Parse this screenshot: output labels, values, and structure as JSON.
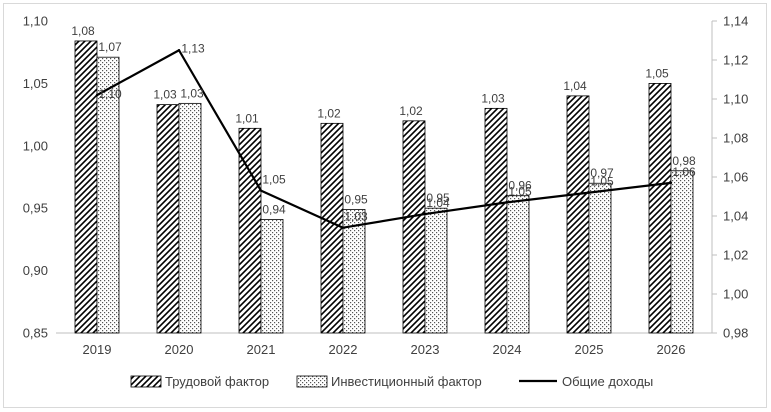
{
  "chart_data": {
    "type": "bar",
    "categories": [
      "2019",
      "2020",
      "2021",
      "2022",
      "2023",
      "2024",
      "2025",
      "2026"
    ],
    "series": [
      {
        "name": "Трудовой фактор",
        "type": "bar",
        "axis": "left",
        "pattern": "diagonal-hatch",
        "values": [
          1.084,
          1.033,
          1.014,
          1.018,
          1.02,
          1.03,
          1.04,
          1.05
        ],
        "labels": [
          "1,08",
          "1,03",
          "1,01",
          "1,02",
          "1,02",
          "1,03",
          "1,04",
          "1,05"
        ]
      },
      {
        "name": "Инвестиционный фактор",
        "type": "bar",
        "axis": "left",
        "pattern": "dotted",
        "values": [
          1.071,
          1.034,
          0.941,
          0.949,
          0.95,
          0.96,
          0.97,
          0.98
        ],
        "labels": [
          "1,07",
          "1,03",
          "0,94",
          "0,95",
          "0,95",
          "0,96",
          "0,97",
          "0,98"
        ]
      },
      {
        "name": "Общие доходы",
        "type": "line",
        "axis": "right",
        "values": [
          1.102,
          1.125,
          1.053,
          1.034,
          1.041,
          1.047,
          1.052,
          1.057
        ],
        "labels": [
          "1,10",
          "1,13",
          "1,05",
          "1,03",
          "1,04",
          "1,05",
          "1,05",
          "1,06"
        ]
      }
    ],
    "y_left": {
      "ylim": [
        0.85,
        1.1
      ],
      "ticks": [
        "0,85",
        "0,90",
        "0,95",
        "1,00",
        "1,05",
        "1,10"
      ]
    },
    "y_right": {
      "ylim": [
        0.98,
        1.14
      ],
      "ticks": [
        "0,98",
        "1,00",
        "1,02",
        "1,04",
        "1,06",
        "1,08",
        "1,10",
        "1,12",
        "1,14"
      ]
    },
    "legend_position": "bottom",
    "grid": false,
    "colors": {
      "bar_stroke": "#000000",
      "line": "#000000",
      "text": "#404040",
      "axis": "#bfbfbf"
    }
  }
}
